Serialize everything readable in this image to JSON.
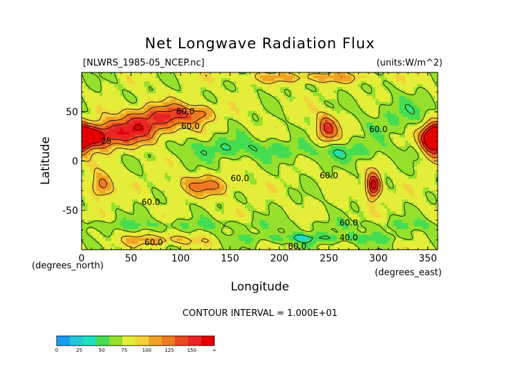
{
  "chart_data": {
    "type": "heatmap",
    "title": "Net Longwave Radiation Flux",
    "file_label": "[NLWRS_1985-05_NCEP.nc]",
    "units_label": "(units:W/m^2)",
    "xlabel": "Longitude",
    "ylabel": "Latitude",
    "x_unit_label": "(degrees_east)",
    "y_unit_label": "(degrees_north)",
    "xlim": [
      0,
      360
    ],
    "ylim": [
      -90,
      90
    ],
    "x_ticks": [
      "0",
      "50",
      "100",
      "150",
      "200",
      "250",
      "300",
      "350"
    ],
    "y_ticks": [
      "50",
      "0",
      "-50"
    ],
    "contour_interval_text": "CONTOUR INTERVAL = 1.000E+01",
    "contour_labels": [
      {
        "text": "60.0",
        "lon": 105,
        "lat": 50
      },
      {
        "text": "60.0",
        "lon": 110,
        "lat": 35
      },
      {
        "text": "25",
        "lon": 25,
        "lat": 20
      },
      {
        "text": "60.0",
        "lon": 300,
        "lat": 32
      },
      {
        "text": "60.0",
        "lon": 160,
        "lat": -18
      },
      {
        "text": "60.0",
        "lon": 70,
        "lat": -42
      },
      {
        "text": "60.0",
        "lon": 250,
        "lat": -15
      },
      {
        "text": "60.0",
        "lon": 270,
        "lat": -63
      },
      {
        "text": "40.0",
        "lon": 270,
        "lat": -78
      },
      {
        "text": "60.0",
        "lon": 73,
        "lat": -83
      },
      {
        "text": "60.0",
        "lon": 218,
        "lat": -87
      }
    ],
    "colorbar": {
      "ticks": [
        "0",
        "25",
        "50",
        "75",
        "100",
        "125",
        "150",
        "∞"
      ],
      "colors": [
        "#1b9eee",
        "#22c8d8",
        "#1ee0c0",
        "#45dc52",
        "#95e02c",
        "#e4ee3a",
        "#f2d23a",
        "#f0a324",
        "#ee7a24",
        "#e84820",
        "#e82424",
        "#e50000"
      ]
    },
    "background_level_color": "#45dc52"
  }
}
